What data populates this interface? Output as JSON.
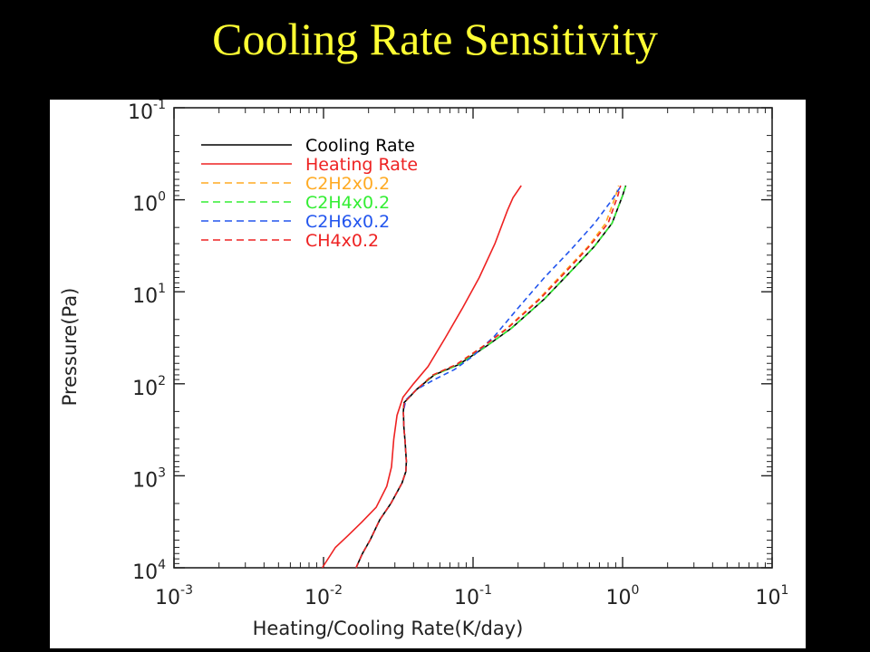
{
  "slide": {
    "title": "Cooling Rate Sensitivity"
  },
  "colors": {
    "background": "#000000",
    "title": "#ffff33",
    "panel": "#ffffff"
  },
  "chart_data": {
    "type": "line",
    "title": "",
    "xlabel": "Heating/Cooling Rate(K/day)",
    "ylabel": "Pressure(Pa)",
    "xscale": "log",
    "yscale": "log",
    "yaxis_inverted": true,
    "xlim": [
      0.001,
      10
    ],
    "ylim": [
      10000,
      0.1
    ],
    "grid": false,
    "legend_position": "top-left",
    "x_ticks": [
      {
        "value": 0.001,
        "base": "10",
        "exp": "-3"
      },
      {
        "value": 0.01,
        "base": "10",
        "exp": "-2"
      },
      {
        "value": 0.1,
        "base": "10",
        "exp": "-1"
      },
      {
        "value": 1,
        "base": "10",
        "exp": "0"
      },
      {
        "value": 10,
        "base": "10",
        "exp": "1"
      }
    ],
    "y_ticks": [
      {
        "value": 0.1,
        "base": "10",
        "exp": "-1"
      },
      {
        "value": 1,
        "base": "10",
        "exp": "0"
      },
      {
        "value": 10,
        "base": "10",
        "exp": "1"
      },
      {
        "value": 100,
        "base": "10",
        "exp": "2"
      },
      {
        "value": 1000,
        "base": "10",
        "exp": "3"
      },
      {
        "value": 10000,
        "base": "10",
        "exp": "4"
      }
    ],
    "series": [
      {
        "name": "Cooling Rate",
        "color": "#000000",
        "dash": "solid",
        "points": [
          [
            0.0165,
            10000
          ],
          [
            0.0182,
            7000
          ],
          [
            0.0205,
            5000
          ],
          [
            0.0238,
            3000
          ],
          [
            0.0282,
            2000
          ],
          [
            0.0335,
            1200
          ],
          [
            0.0355,
            900
          ],
          [
            0.0358,
            700
          ],
          [
            0.0352,
            450
          ],
          [
            0.0345,
            300
          ],
          [
            0.0342,
            200
          ],
          [
            0.0346,
            160
          ],
          [
            0.036,
            150
          ],
          [
            0.042,
            115
          ],
          [
            0.055,
            80
          ],
          [
            0.08,
            62
          ],
          [
            0.12,
            40
          ],
          [
            0.18,
            25
          ],
          [
            0.3,
            12
          ],
          [
            0.45,
            6
          ],
          [
            0.65,
            3.2
          ],
          [
            0.85,
            1.8
          ],
          [
            1.0,
            0.9
          ],
          [
            1.05,
            0.7
          ]
        ]
      },
      {
        "name": "Heating Rate",
        "color": "#ee2222",
        "dash": "solid",
        "points": [
          [
            0.0098,
            10000
          ],
          [
            0.012,
            6000
          ],
          [
            0.0145,
            4500
          ],
          [
            0.018,
            3200
          ],
          [
            0.0225,
            2200
          ],
          [
            0.0265,
            1300
          ],
          [
            0.0285,
            800
          ],
          [
            0.0295,
            400
          ],
          [
            0.031,
            220
          ],
          [
            0.034,
            140
          ],
          [
            0.04,
            100
          ],
          [
            0.05,
            65
          ],
          [
            0.065,
            32
          ],
          [
            0.085,
            15
          ],
          [
            0.11,
            7
          ],
          [
            0.14,
            3
          ],
          [
            0.17,
            1.3
          ],
          [
            0.185,
            0.95
          ],
          [
            0.21,
            0.7
          ]
        ]
      },
      {
        "name": "C2H2x0.2",
        "color": "#ffaa22",
        "dash": "dashed",
        "points": [
          [
            0.0165,
            10000
          ],
          [
            0.0182,
            7000
          ],
          [
            0.0205,
            5000
          ],
          [
            0.0238,
            3000
          ],
          [
            0.0282,
            2000
          ],
          [
            0.0335,
            1200
          ],
          [
            0.0355,
            900
          ],
          [
            0.0358,
            700
          ],
          [
            0.0352,
            450
          ],
          [
            0.0345,
            300
          ],
          [
            0.0342,
            200
          ],
          [
            0.0346,
            160
          ],
          [
            0.036,
            150
          ],
          [
            0.042,
            115
          ],
          [
            0.054,
            80
          ],
          [
            0.077,
            62
          ],
          [
            0.114,
            40
          ],
          [
            0.168,
            25
          ],
          [
            0.275,
            12
          ],
          [
            0.41,
            6
          ],
          [
            0.59,
            3.2
          ],
          [
            0.77,
            1.8
          ],
          [
            0.9,
            0.9
          ],
          [
            0.94,
            0.7
          ]
        ]
      },
      {
        "name": "C2H4x0.2",
        "color": "#33ee33",
        "dash": "dashed",
        "points": [
          [
            0.0165,
            10000
          ],
          [
            0.0182,
            7000
          ],
          [
            0.0205,
            5000
          ],
          [
            0.0238,
            3000
          ],
          [
            0.0282,
            2000
          ],
          [
            0.0335,
            1200
          ],
          [
            0.0355,
            900
          ],
          [
            0.0358,
            700
          ],
          [
            0.0352,
            450
          ],
          [
            0.0345,
            300
          ],
          [
            0.0342,
            200
          ],
          [
            0.0346,
            160
          ],
          [
            0.036,
            150
          ],
          [
            0.042,
            115
          ],
          [
            0.055,
            80
          ],
          [
            0.08,
            62
          ],
          [
            0.12,
            40
          ],
          [
            0.18,
            25
          ],
          [
            0.3,
            12
          ],
          [
            0.45,
            6
          ],
          [
            0.65,
            3.2
          ],
          [
            0.85,
            1.8
          ],
          [
            1.0,
            0.9
          ],
          [
            1.05,
            0.7
          ]
        ]
      },
      {
        "name": "C2H6x0.2",
        "color": "#2255ee",
        "dash": "dashed",
        "points": [
          [
            0.0165,
            10000
          ],
          [
            0.0182,
            7000
          ],
          [
            0.0205,
            5000
          ],
          [
            0.0238,
            3000
          ],
          [
            0.0282,
            2000
          ],
          [
            0.0335,
            1200
          ],
          [
            0.0355,
            900
          ],
          [
            0.0358,
            700
          ],
          [
            0.0352,
            450
          ],
          [
            0.0345,
            300
          ],
          [
            0.0342,
            200
          ],
          [
            0.0355,
            150
          ],
          [
            0.042,
            115
          ],
          [
            0.055,
            90
          ],
          [
            0.075,
            70
          ],
          [
            0.1,
            50
          ],
          [
            0.14,
            30
          ],
          [
            0.2,
            15
          ],
          [
            0.3,
            7
          ],
          [
            0.45,
            3.5
          ],
          [
            0.65,
            1.8
          ],
          [
            0.85,
            1.0
          ],
          [
            0.98,
            0.7
          ]
        ]
      },
      {
        "name": "CH4x0.2",
        "color": "#ee2222",
        "dash": "dashed",
        "points": [
          [
            0.0165,
            10000
          ],
          [
            0.0182,
            7000
          ],
          [
            0.0205,
            5000
          ],
          [
            0.0238,
            3000
          ],
          [
            0.0282,
            2000
          ],
          [
            0.0335,
            1200
          ],
          [
            0.0355,
            900
          ],
          [
            0.0358,
            700
          ],
          [
            0.0352,
            450
          ],
          [
            0.0345,
            300
          ],
          [
            0.0342,
            200
          ],
          [
            0.0346,
            160
          ],
          [
            0.036,
            150
          ],
          [
            0.042,
            115
          ],
          [
            0.054,
            80
          ],
          [
            0.077,
            62
          ],
          [
            0.115,
            40
          ],
          [
            0.17,
            25
          ],
          [
            0.28,
            12
          ],
          [
            0.42,
            6
          ],
          [
            0.6,
            3.2
          ],
          [
            0.8,
            1.8
          ],
          [
            0.93,
            0.9
          ],
          [
            0.97,
            0.7
          ]
        ]
      }
    ]
  }
}
